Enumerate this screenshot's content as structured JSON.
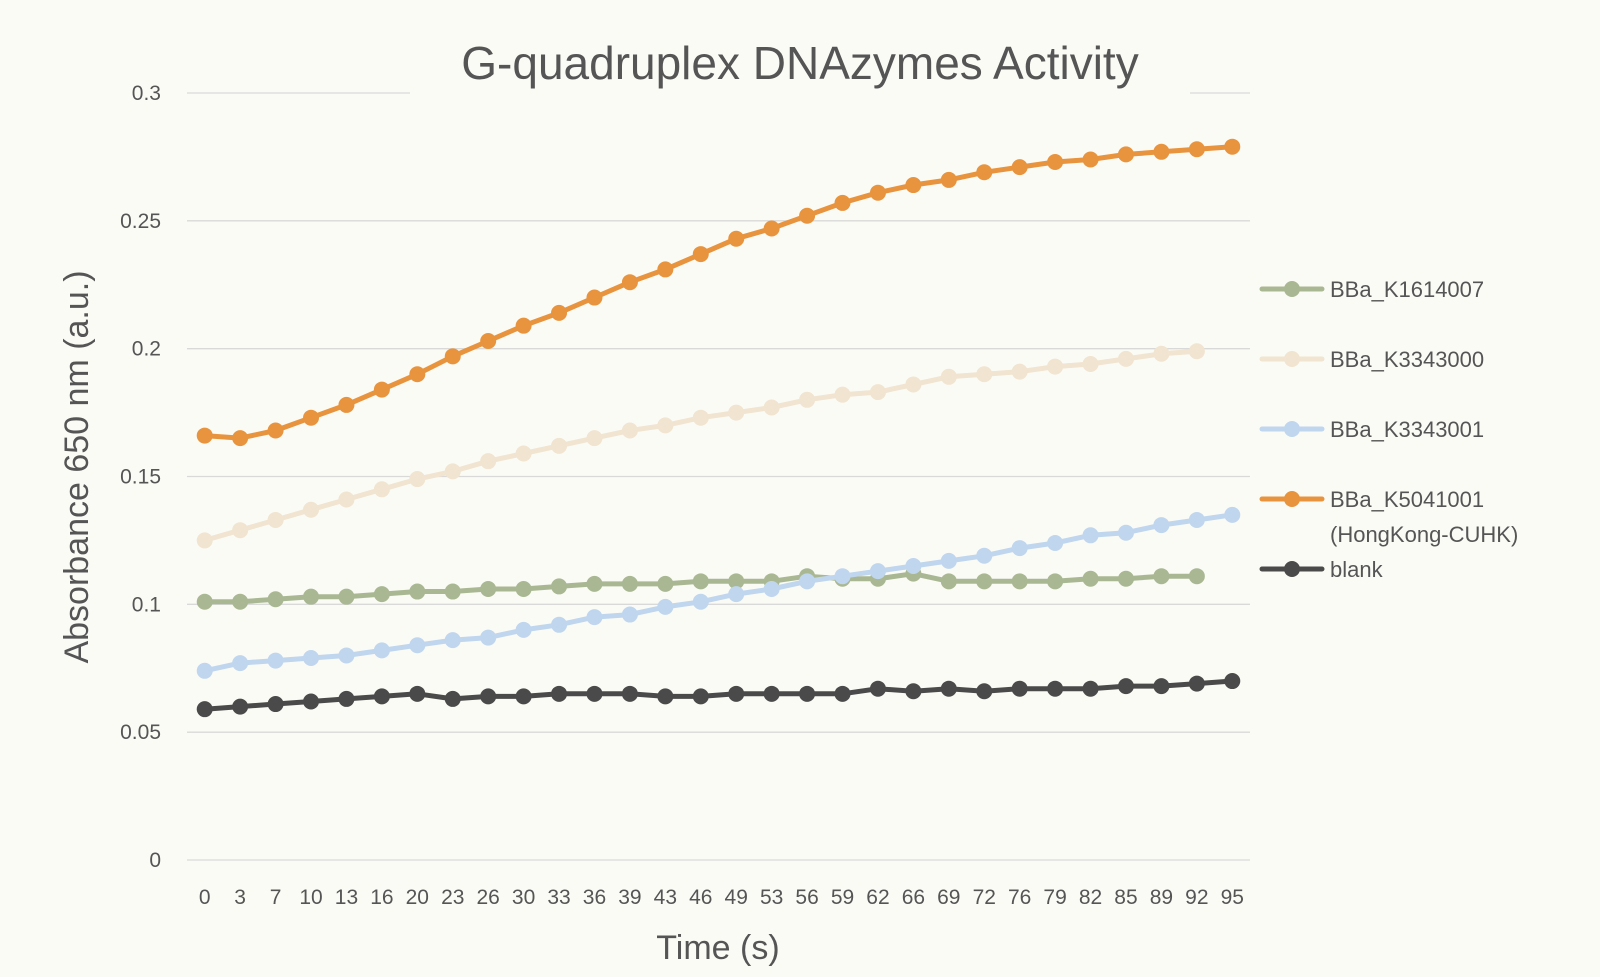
{
  "chart_data": {
    "type": "line",
    "title": "G-quadruplex DNAzymes Activity",
    "xlabel": "Time (s)",
    "ylabel": "Absorbance 650 nm (a.u.)",
    "ylim": [
      0,
      0.3
    ],
    "y_ticks": [
      "0",
      "0.05",
      "0.1",
      "0.15",
      "0.2",
      "0.25",
      "0.3"
    ],
    "grid": true,
    "legend_position": "right",
    "x": [
      "0",
      "3",
      "7",
      "10",
      "13",
      "16",
      "20",
      "23",
      "26",
      "30",
      "33",
      "36",
      "39",
      "43",
      "46",
      "49",
      "53",
      "56",
      "59",
      "62",
      "66",
      "69",
      "72",
      "76",
      "79",
      "82",
      "85",
      "89",
      "92",
      "95"
    ],
    "series": [
      {
        "name": "BBa_K1614007",
        "color": "#a9b893",
        "values": [
          0.101,
          0.101,
          0.102,
          0.103,
          0.103,
          0.104,
          0.105,
          0.105,
          0.106,
          0.106,
          0.107,
          0.108,
          0.108,
          0.108,
          0.109,
          0.109,
          0.109,
          0.111,
          0.11,
          0.11,
          0.112,
          0.109,
          0.109,
          0.109,
          0.109,
          0.11,
          0.11,
          0.111,
          0.111,
          null
        ]
      },
      {
        "name": "BBa_K3343000",
        "color": "#f1e4d0",
        "values": [
          0.125,
          0.129,
          0.133,
          0.137,
          0.141,
          0.145,
          0.149,
          0.152,
          0.156,
          0.159,
          0.162,
          0.165,
          0.168,
          0.17,
          0.173,
          0.175,
          0.177,
          0.18,
          0.182,
          0.183,
          0.186,
          0.189,
          0.19,
          0.191,
          0.193,
          0.194,
          0.196,
          0.198,
          0.199,
          null
        ]
      },
      {
        "name": "BBa_K3343001",
        "color": "#bfd6ee",
        "values": [
          0.074,
          0.077,
          0.078,
          0.079,
          0.08,
          0.082,
          0.084,
          0.086,
          0.087,
          0.09,
          0.092,
          0.095,
          0.096,
          0.099,
          0.101,
          0.104,
          0.106,
          0.109,
          0.111,
          0.113,
          0.115,
          0.117,
          0.119,
          0.122,
          0.124,
          0.127,
          0.128,
          0.131,
          0.133,
          0.135
        ]
      },
      {
        "name": "BBa_K5041001 (HongKong-CUHK)",
        "name_lines": [
          "BBa_K5041001",
          "(HongKong-CUHK)"
        ],
        "color": "#e8943e",
        "values": [
          0.166,
          0.165,
          0.168,
          0.173,
          0.178,
          0.184,
          0.19,
          0.197,
          0.203,
          0.209,
          0.214,
          0.22,
          0.226,
          0.231,
          0.237,
          0.243,
          0.247,
          0.252,
          0.257,
          0.261,
          0.264,
          0.266,
          0.269,
          0.271,
          0.273,
          0.274,
          0.276,
          0.277,
          0.278,
          0.279
        ]
      },
      {
        "name": "blank",
        "color": "#4a4a4a",
        "values": [
          0.059,
          0.06,
          0.061,
          0.062,
          0.063,
          0.064,
          0.065,
          0.063,
          0.064,
          0.064,
          0.065,
          0.065,
          0.065,
          0.064,
          0.064,
          0.065,
          0.065,
          0.065,
          0.065,
          0.067,
          0.066,
          0.067,
          0.066,
          0.067,
          0.067,
          0.067,
          0.068,
          0.068,
          0.069,
          0.07
        ]
      }
    ]
  }
}
